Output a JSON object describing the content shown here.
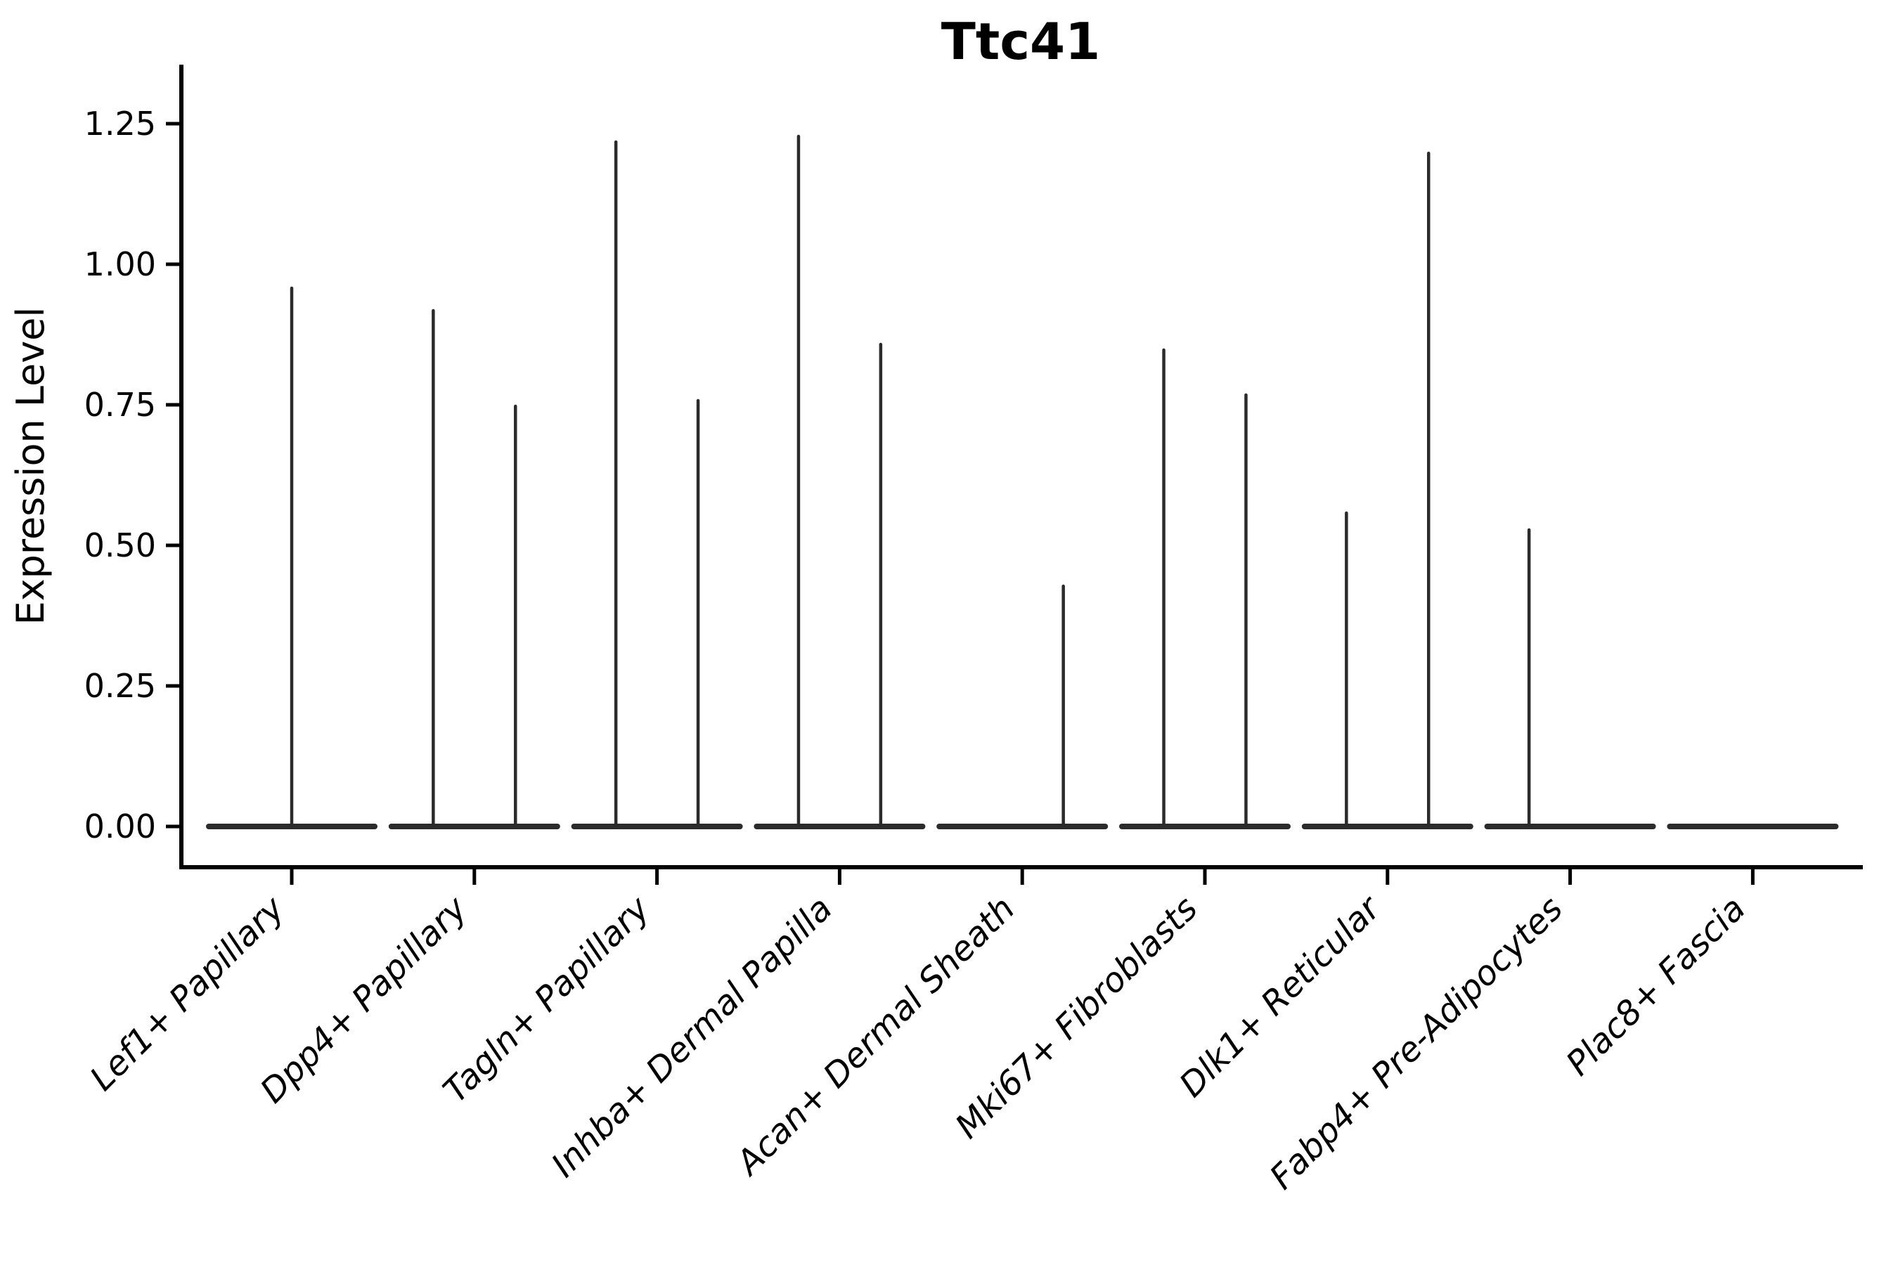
{
  "chart_data": {
    "type": "violin",
    "title": "Ttc41",
    "ylabel": "Expression Level",
    "xlabel": "",
    "grid": false,
    "legend": null,
    "background_color": "#ffffff",
    "axis_color": "#000000",
    "violin_line_color": "#2b2b2b",
    "ylim": [
      -0.07,
      1.36
    ],
    "yticks": [
      0.0,
      0.25,
      0.5,
      0.75,
      1.0,
      1.25
    ],
    "ytick_labels": [
      "0.00",
      "0.25",
      "0.50",
      "0.75",
      "1.00",
      "1.25"
    ],
    "categories": [
      "Lef1+ Papillary",
      "Dpp4+ Papillary",
      "Tagln+ Papillary",
      "Inhba+ Dermal Papilla",
      "Acan+ Dermal Sheath",
      "Mki67+ Fibroblasts",
      "Dlk1+ Reticular",
      "Fabp4+ Pre-Adipocytes",
      "Plac8+ Fascia"
    ],
    "violins": [
      {
        "category": "Lef1+ Papillary",
        "base_value": 0,
        "spikes": [
          {
            "offset": 0,
            "max": 0.96
          }
        ]
      },
      {
        "category": "Dpp4+ Papillary",
        "base_value": 0,
        "spikes": [
          {
            "offset": -0.225,
            "max": 0.92
          },
          {
            "offset": 0.225,
            "max": 0.75
          }
        ]
      },
      {
        "category": "Tagln+ Papillary",
        "base_value": 0,
        "spikes": [
          {
            "offset": -0.225,
            "max": 1.22
          },
          {
            "offset": 0.225,
            "max": 0.76
          }
        ]
      },
      {
        "category": "Inhba+ Dermal Papilla",
        "base_value": 0,
        "spikes": [
          {
            "offset": -0.225,
            "max": 1.23
          },
          {
            "offset": 0.225,
            "max": 0.86
          }
        ]
      },
      {
        "category": "Acan+ Dermal Sheath",
        "base_value": 0,
        "spikes": [
          {
            "offset": 0.225,
            "max": 0.43
          }
        ]
      },
      {
        "category": "Mki67+ Fibroblasts",
        "base_value": 0,
        "spikes": [
          {
            "offset": -0.225,
            "max": 0.85
          },
          {
            "offset": 0.225,
            "max": 0.77
          }
        ]
      },
      {
        "category": "Dlk1+ Reticular",
        "base_value": 0,
        "spikes": [
          {
            "offset": -0.225,
            "max": 0.56
          },
          {
            "offset": 0.225,
            "max": 1.2
          }
        ]
      },
      {
        "category": "Fabp4+ Pre-Adipocytes",
        "base_value": 0,
        "spikes": [
          {
            "offset": -0.225,
            "max": 0.53
          }
        ]
      },
      {
        "category": "Plac8+ Fascia",
        "base_value": 0,
        "spikes": []
      }
    ]
  }
}
